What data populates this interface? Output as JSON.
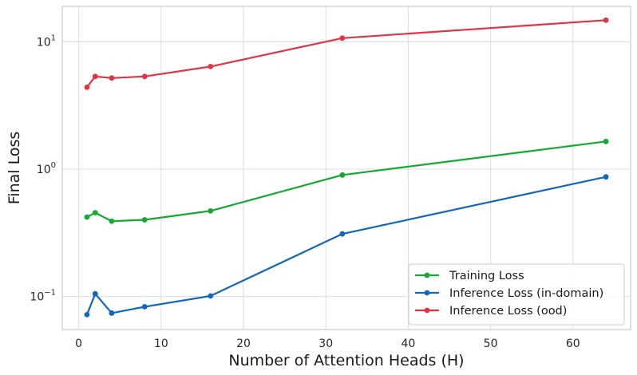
{
  "chart_data": {
    "type": "line",
    "title": "",
    "xlabel": "Number of Attention Heads (H)",
    "ylabel": "Final Loss",
    "xscale": "linear",
    "yscale": "log",
    "xlim": [
      -2,
      67
    ],
    "ylim": [
      0.055,
      19
    ],
    "xticks": [
      0,
      10,
      20,
      30,
      40,
      50,
      60
    ],
    "xtick_labels": [
      "0",
      "10",
      "20",
      "30",
      "40",
      "50",
      "60"
    ],
    "yticks": [
      0.1,
      1,
      10
    ],
    "ytick_labels": [
      {
        "base": "10",
        "exp": "−1"
      },
      {
        "base": "10",
        "exp": "0"
      },
      {
        "base": "10",
        "exp": "1"
      }
    ],
    "grid": true,
    "legend_position": "lower-right",
    "x": [
      1,
      2,
      4,
      8,
      16,
      32,
      64
    ],
    "series": [
      {
        "name": "Training Loss",
        "color": "#13aa2f",
        "values": [
          0.42,
          0.455,
          0.39,
          0.4,
          0.47,
          0.9,
          1.65
        ]
      },
      {
        "name": "Inference Loss (in-domain)",
        "color": "#1167bd",
        "values": [
          0.072,
          0.105,
          0.074,
          0.083,
          0.101,
          0.31,
          0.87
        ]
      },
      {
        "name": "Inference Loss (ood)",
        "color": "#e03442",
        "values": [
          4.4,
          5.35,
          5.2,
          5.35,
          6.4,
          10.7,
          14.8
        ]
      }
    ]
  }
}
